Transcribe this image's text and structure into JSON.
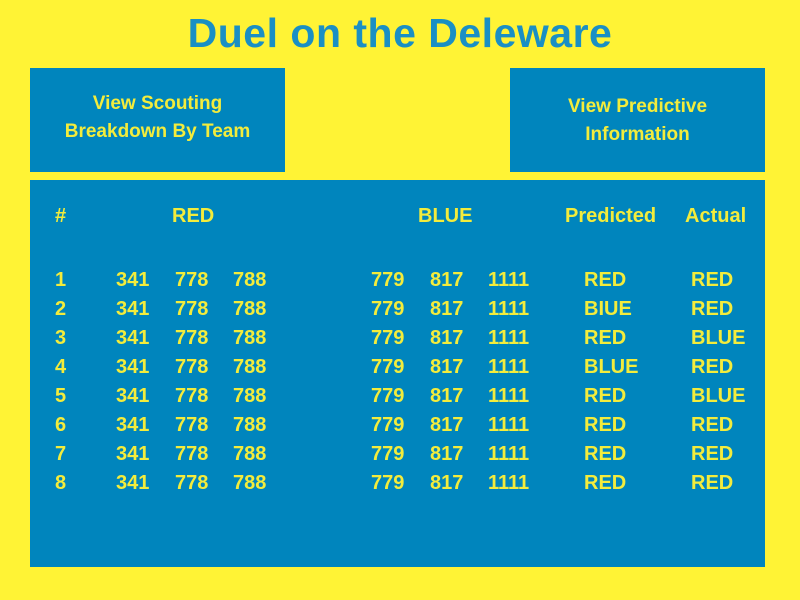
{
  "title": "Duel on the Deleware",
  "buttons": {
    "scouting": {
      "line1": "View Scouting",
      "line2": "Breakdown By Team"
    },
    "predictive": {
      "line1": "View Predictive",
      "line2": "Information"
    }
  },
  "table": {
    "headers": {
      "number": "#",
      "red": "RED",
      "blue": "BLUE",
      "predicted": "Predicted",
      "actual": "Actual"
    },
    "rows": [
      {
        "num": "1",
        "red": [
          "341",
          "778",
          "788"
        ],
        "blue": [
          "779",
          "817",
          "1111"
        ],
        "predicted": "RED",
        "actual": "RED"
      },
      {
        "num": "2",
        "red": [
          "341",
          "778",
          "788"
        ],
        "blue": [
          "779",
          "817",
          "1111"
        ],
        "predicted": "BIUE",
        "actual": "RED"
      },
      {
        "num": "3",
        "red": [
          "341",
          "778",
          "788"
        ],
        "blue": [
          "779",
          "817",
          "1111"
        ],
        "predicted": "RED",
        "actual": "BLUE"
      },
      {
        "num": "4",
        "red": [
          "341",
          "778",
          "788"
        ],
        "blue": [
          "779",
          "817",
          "1111"
        ],
        "predicted": "BLUE",
        "actual": "RED"
      },
      {
        "num": "5",
        "red": [
          "341",
          "778",
          "788"
        ],
        "blue": [
          "779",
          "817",
          "1111"
        ],
        "predicted": "RED",
        "actual": "BLUE"
      },
      {
        "num": "6",
        "red": [
          "341",
          "778",
          "788"
        ],
        "blue": [
          "779",
          "817",
          "1111"
        ],
        "predicted": "RED",
        "actual": "RED"
      },
      {
        "num": "7",
        "red": [
          "341",
          "778",
          "788"
        ],
        "blue": [
          "779",
          "817",
          "1111"
        ],
        "predicted": "RED",
        "actual": "RED"
      },
      {
        "num": "8",
        "red": [
          "341",
          "778",
          "788"
        ],
        "blue": [
          "779",
          "817",
          "1111"
        ],
        "predicted": "RED",
        "actual": "RED"
      }
    ]
  },
  "colors": {
    "background": "#fff335",
    "panel": "#0085bd",
    "text_accent": "#f3ec3c",
    "title": "#1a8fc4"
  }
}
